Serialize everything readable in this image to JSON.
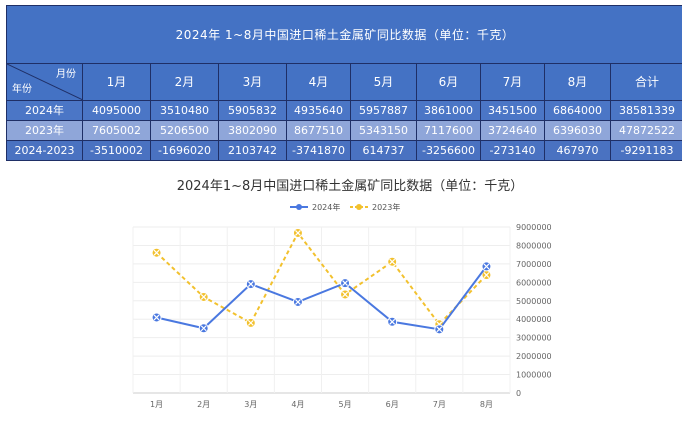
{
  "table": {
    "title": "2024年 1~8月中国进口稀土金属矿同比数据（单位：千克）",
    "corner_top": "月份",
    "corner_bottom": "年份",
    "headers": [
      "1月",
      "2月",
      "3月",
      "4月",
      "5月",
      "6月",
      "7月",
      "8月",
      "合计"
    ],
    "rows": [
      {
        "label": "2024年",
        "cells": [
          "4095000",
          "3510480",
          "5905832",
          "4935640",
          "5957887",
          "3861000",
          "3451500",
          "6864000",
          "38581339"
        ]
      },
      {
        "label": "2023年",
        "cells": [
          "7605002",
          "5206500",
          "3802090",
          "8677510",
          "5343150",
          "7117600",
          "3724640",
          "6396030",
          "47872522"
        ]
      },
      {
        "label": "2024-2023",
        "cells": [
          "-3510002",
          "-1696020",
          "2103742",
          "-3741870",
          "614737",
          "-3256600",
          "-273140",
          "467970",
          "-9291183"
        ]
      }
    ]
  },
  "chart_data": {
    "type": "line",
    "title": "2024年1~8月中国进口稀土金属矿同比数据（单位：千克）",
    "categories": [
      "1月",
      "2月",
      "3月",
      "4月",
      "5月",
      "6月",
      "7月",
      "8月"
    ],
    "series": [
      {
        "name": "2024年",
        "color": "#4a78e0",
        "dash": false,
        "values": [
          4095000,
          3510480,
          5905832,
          4935640,
          5957887,
          3861000,
          3451500,
          6864000
        ]
      },
      {
        "name": "2023年",
        "color": "#f2c12e",
        "dash": true,
        "values": [
          7605002,
          5206500,
          3802090,
          8677510,
          5343150,
          7117600,
          3724640,
          6396030
        ]
      }
    ],
    "yticks": [
      0,
      1000000,
      2000000,
      3000000,
      4000000,
      5000000,
      6000000,
      7000000,
      8000000,
      9000000
    ],
    "ylim": [
      0,
      9000000
    ],
    "y_axis_side": "right",
    "legend": "top-center",
    "grid": true
  }
}
